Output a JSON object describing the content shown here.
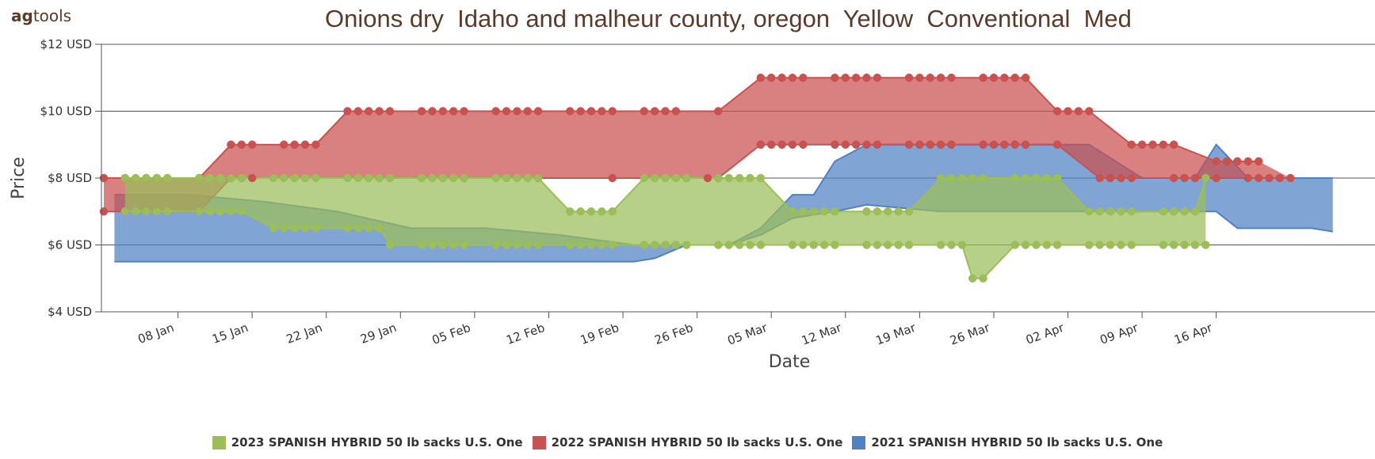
{
  "logo": {
    "bold": "ag",
    "rest": "tools"
  },
  "chart_data": {
    "type": "area",
    "title": "Onions dry  Idaho and malheur county, oregon  Yellow  Conventional  Med",
    "xlabel": "Date",
    "ylabel": "Price",
    "ylim": [
      4,
      12
    ],
    "yticks": [
      "$4 USD",
      "$6 USD",
      "$8 USD",
      "$10 USD",
      "$12 USD"
    ],
    "xticks": [
      "08 Jan",
      "15 Jan",
      "22 Jan",
      "29 Jan",
      "05 Feb",
      "12 Feb",
      "19 Feb",
      "26 Feb",
      "05 Mar",
      "12 Mar",
      "19 Mar",
      "26 Mar",
      "02 Apr",
      "09 Apr",
      "16 Apr"
    ],
    "x_days_note": "x values are day-of-year (Jan 1 = 1)",
    "grid": true,
    "legend_position": "bottom",
    "series": [
      {
        "name": "2021 SPANISH HYBRID 50 lb sacks U.S. One",
        "color": "#4f81c4",
        "low": [
          [
            2,
            5.5
          ],
          [
            16,
            5.5
          ],
          [
            23,
            5.5
          ],
          [
            30,
            5.5
          ],
          [
            37,
            5.5
          ],
          [
            44,
            5.5
          ],
          [
            51,
            5.5
          ],
          [
            53,
            5.6
          ],
          [
            56,
            6.0
          ],
          [
            60,
            6.0
          ],
          [
            63,
            6.3
          ],
          [
            66,
            6.8
          ],
          [
            70,
            7.0
          ],
          [
            73,
            7.2
          ],
          [
            80,
            7.0
          ],
          [
            87,
            7.0
          ],
          [
            94,
            7.0
          ],
          [
            101,
            7.0
          ],
          [
            106,
            7.0
          ],
          [
            108,
            6.5
          ],
          [
            115,
            6.5
          ],
          [
            117,
            6.4
          ]
        ],
        "high": [
          [
            2,
            7.5
          ],
          [
            9,
            7.5
          ],
          [
            16,
            7.3
          ],
          [
            23,
            7.0
          ],
          [
            30,
            6.5
          ],
          [
            37,
            6.5
          ],
          [
            44,
            6.3
          ],
          [
            51,
            6.0
          ],
          [
            53,
            6.0
          ],
          [
            56,
            6.0
          ],
          [
            60,
            6.0
          ],
          [
            63,
            6.5
          ],
          [
            66,
            7.5
          ],
          [
            68,
            7.5
          ],
          [
            70,
            8.5
          ],
          [
            73,
            9.0
          ],
          [
            80,
            9.0
          ],
          [
            87,
            9.0
          ],
          [
            94,
            9.0
          ],
          [
            99,
            8.0
          ],
          [
            104,
            8.0
          ],
          [
            106,
            9.0
          ],
          [
            109,
            8.0
          ],
          [
            115,
            8.0
          ],
          [
            117,
            8.0
          ]
        ]
      },
      {
        "name": "2022 SPANISH HYBRID 50 lb sacks U.S. One",
        "color": "#c9514f",
        "low": [
          [
            1,
            7.0
          ],
          [
            3,
            7.0
          ],
          [
            5,
            7.0
          ],
          [
            6,
            7.0
          ],
          [
            10,
            7.0
          ],
          [
            13,
            8.0
          ],
          [
            14,
            8.0
          ],
          [
            15,
            8.0
          ],
          [
            27,
            8.0
          ],
          [
            35,
            8.0
          ],
          [
            42,
            8.0
          ],
          [
            49,
            8.0
          ],
          [
            56,
            8.0
          ],
          [
            58,
            8.0
          ],
          [
            59,
            8.0
          ],
          [
            63,
            9.0
          ],
          [
            64,
            9.0
          ],
          [
            65,
            9.0
          ],
          [
            66,
            9.0
          ],
          [
            67,
            9.0
          ],
          [
            70,
            9.0
          ],
          [
            71,
            9.0
          ],
          [
            72,
            9.0
          ],
          [
            73,
            9.0
          ],
          [
            74,
            9.0
          ],
          [
            77,
            9.0
          ],
          [
            78,
            9.0
          ],
          [
            79,
            9.0
          ],
          [
            80,
            9.0
          ],
          [
            81,
            9.0
          ],
          [
            84,
            9.0
          ],
          [
            85,
            9.0
          ],
          [
            86,
            9.0
          ],
          [
            87,
            9.0
          ],
          [
            88,
            9.0
          ],
          [
            91,
            9.0
          ],
          [
            95,
            8.0
          ],
          [
            96,
            8.0
          ],
          [
            97,
            8.0
          ],
          [
            98,
            8.0
          ],
          [
            102,
            8.0
          ],
          [
            103,
            8.0
          ],
          [
            104,
            8.0
          ],
          [
            105,
            8.0
          ],
          [
            106,
            8.0
          ],
          [
            109,
            8.0
          ],
          [
            110,
            8.0
          ],
          [
            111,
            8.0
          ],
          [
            112,
            8.0
          ],
          [
            113,
            8.0
          ]
        ],
        "high": [
          [
            1,
            8.0
          ],
          [
            3,
            8.0
          ],
          [
            5,
            8.0
          ],
          [
            6,
            8.0
          ],
          [
            10,
            8.0
          ],
          [
            13,
            9.0
          ],
          [
            14,
            9.0
          ],
          [
            15,
            9.0
          ],
          [
            18,
            9.0
          ],
          [
            19,
            9.0
          ],
          [
            20,
            9.0
          ],
          [
            21,
            9.0
          ],
          [
            24,
            10.0
          ],
          [
            25,
            10.0
          ],
          [
            26,
            10.0
          ],
          [
            27,
            10.0
          ],
          [
            28,
            10.0
          ],
          [
            31,
            10.0
          ],
          [
            32,
            10.0
          ],
          [
            33,
            10.0
          ],
          [
            34,
            10.0
          ],
          [
            35,
            10.0
          ],
          [
            38,
            10.0
          ],
          [
            39,
            10.0
          ],
          [
            40,
            10.0
          ],
          [
            41,
            10.0
          ],
          [
            42,
            10.0
          ],
          [
            45,
            10.0
          ],
          [
            46,
            10.0
          ],
          [
            47,
            10.0
          ],
          [
            48,
            10.0
          ],
          [
            49,
            10.0
          ],
          [
            52,
            10.0
          ],
          [
            53,
            10.0
          ],
          [
            54,
            10.0
          ],
          [
            55,
            10.0
          ],
          [
            59,
            10.0
          ],
          [
            63,
            11.0
          ],
          [
            64,
            11.0
          ],
          [
            65,
            11.0
          ],
          [
            66,
            11.0
          ],
          [
            67,
            11.0
          ],
          [
            70,
            11.0
          ],
          [
            71,
            11.0
          ],
          [
            72,
            11.0
          ],
          [
            73,
            11.0
          ],
          [
            74,
            11.0
          ],
          [
            77,
            11.0
          ],
          [
            78,
            11.0
          ],
          [
            79,
            11.0
          ],
          [
            80,
            11.0
          ],
          [
            81,
            11.0
          ],
          [
            84,
            11.0
          ],
          [
            85,
            11.0
          ],
          [
            86,
            11.0
          ],
          [
            87,
            11.0
          ],
          [
            88,
            11.0
          ],
          [
            91,
            10.0
          ],
          [
            92,
            10.0
          ],
          [
            93,
            10.0
          ],
          [
            94,
            10.0
          ],
          [
            98,
            9.0
          ],
          [
            99,
            9.0
          ],
          [
            100,
            9.0
          ],
          [
            101,
            9.0
          ],
          [
            102,
            9.0
          ],
          [
            106,
            8.5
          ],
          [
            107,
            8.5
          ],
          [
            108,
            8.5
          ],
          [
            109,
            8.5
          ],
          [
            110,
            8.5
          ]
        ]
      },
      {
        "name": "2023 SPANISH HYBRID 50 lb sacks U.S. One",
        "color": "#9bbe59",
        "low": [
          [
            3,
            7.0
          ],
          [
            4,
            7.0
          ],
          [
            5,
            7.0
          ],
          [
            6,
            7.0
          ],
          [
            7,
            7.0
          ],
          [
            10,
            7.0
          ],
          [
            11,
            7.0
          ],
          [
            12,
            7.0
          ],
          [
            13,
            7.0
          ],
          [
            14,
            7.0
          ],
          [
            17,
            6.5
          ],
          [
            18,
            6.5
          ],
          [
            19,
            6.5
          ],
          [
            20,
            6.5
          ],
          [
            21,
            6.5
          ],
          [
            24,
            6.5
          ],
          [
            25,
            6.5
          ],
          [
            26,
            6.5
          ],
          [
            27,
            6.5
          ],
          [
            28,
            6.0
          ],
          [
            31,
            6.0
          ],
          [
            32,
            6.0
          ],
          [
            33,
            6.0
          ],
          [
            34,
            6.0
          ],
          [
            35,
            6.0
          ],
          [
            38,
            6.0
          ],
          [
            39,
            6.0
          ],
          [
            40,
            6.0
          ],
          [
            41,
            6.0
          ],
          [
            42,
            6.0
          ],
          [
            45,
            6.0
          ],
          [
            46,
            6.0
          ],
          [
            47,
            6.0
          ],
          [
            48,
            6.0
          ],
          [
            49,
            6.0
          ],
          [
            52,
            6.0
          ],
          [
            53,
            6.0
          ],
          [
            54,
            6.0
          ],
          [
            55,
            6.0
          ],
          [
            56,
            6.0
          ],
          [
            59,
            6.0
          ],
          [
            60,
            6.0
          ],
          [
            61,
            6.0
          ],
          [
            62,
            6.0
          ],
          [
            63,
            6.0
          ],
          [
            66,
            6.0
          ],
          [
            67,
            6.0
          ],
          [
            68,
            6.0
          ],
          [
            69,
            6.0
          ],
          [
            70,
            6.0
          ],
          [
            73,
            6.0
          ],
          [
            74,
            6.0
          ],
          [
            75,
            6.0
          ],
          [
            76,
            6.0
          ],
          [
            77,
            6.0
          ],
          [
            80,
            6.0
          ],
          [
            81,
            6.0
          ],
          [
            82,
            6.0
          ],
          [
            83,
            5.0
          ],
          [
            84,
            5.0
          ],
          [
            87,
            6.0
          ],
          [
            88,
            6.0
          ],
          [
            89,
            6.0
          ],
          [
            90,
            6.0
          ],
          [
            91,
            6.0
          ],
          [
            94,
            6.0
          ],
          [
            95,
            6.0
          ],
          [
            96,
            6.0
          ],
          [
            97,
            6.0
          ],
          [
            98,
            6.0
          ],
          [
            101,
            6.0
          ],
          [
            102,
            6.0
          ],
          [
            103,
            6.0
          ],
          [
            104,
            6.0
          ],
          [
            105,
            6.0
          ]
        ],
        "high": [
          [
            3,
            8.0
          ],
          [
            4,
            8.0
          ],
          [
            5,
            8.0
          ],
          [
            6,
            8.0
          ],
          [
            7,
            8.0
          ],
          [
            10,
            8.0
          ],
          [
            11,
            8.0
          ],
          [
            12,
            8.0
          ],
          [
            13,
            8.0
          ],
          [
            14,
            8.0
          ],
          [
            17,
            8.0
          ],
          [
            18,
            8.0
          ],
          [
            19,
            8.0
          ],
          [
            20,
            8.0
          ],
          [
            21,
            8.0
          ],
          [
            24,
            8.0
          ],
          [
            25,
            8.0
          ],
          [
            26,
            8.0
          ],
          [
            27,
            8.0
          ],
          [
            28,
            8.0
          ],
          [
            31,
            8.0
          ],
          [
            32,
            8.0
          ],
          [
            33,
            8.0
          ],
          [
            34,
            8.0
          ],
          [
            35,
            8.0
          ],
          [
            38,
            8.0
          ],
          [
            39,
            8.0
          ],
          [
            40,
            8.0
          ],
          [
            41,
            8.0
          ],
          [
            42,
            8.0
          ],
          [
            45,
            7.0
          ],
          [
            46,
            7.0
          ],
          [
            47,
            7.0
          ],
          [
            48,
            7.0
          ],
          [
            49,
            7.0
          ],
          [
            52,
            8.0
          ],
          [
            53,
            8.0
          ],
          [
            54,
            8.0
          ],
          [
            55,
            8.0
          ],
          [
            56,
            8.0
          ],
          [
            59,
            8.0
          ],
          [
            60,
            8.0
          ],
          [
            61,
            8.0
          ],
          [
            62,
            8.0
          ],
          [
            63,
            8.0
          ],
          [
            66,
            7.0
          ],
          [
            67,
            7.0
          ],
          [
            68,
            7.0
          ],
          [
            69,
            7.0
          ],
          [
            70,
            7.0
          ],
          [
            73,
            7.0
          ],
          [
            74,
            7.0
          ],
          [
            75,
            7.0
          ],
          [
            76,
            7.0
          ],
          [
            77,
            7.0
          ],
          [
            80,
            8.0
          ],
          [
            81,
            8.0
          ],
          [
            82,
            8.0
          ],
          [
            83,
            8.0
          ],
          [
            84,
            8.0
          ],
          [
            87,
            8.0
          ],
          [
            88,
            8.0
          ],
          [
            89,
            8.0
          ],
          [
            90,
            8.0
          ],
          [
            91,
            8.0
          ],
          [
            94,
            7.0
          ],
          [
            95,
            7.0
          ],
          [
            96,
            7.0
          ],
          [
            97,
            7.0
          ],
          [
            98,
            7.0
          ],
          [
            101,
            7.0
          ],
          [
            102,
            7.0
          ],
          [
            103,
            7.0
          ],
          [
            104,
            7.0
          ],
          [
            105,
            8.0
          ]
        ]
      }
    ]
  }
}
